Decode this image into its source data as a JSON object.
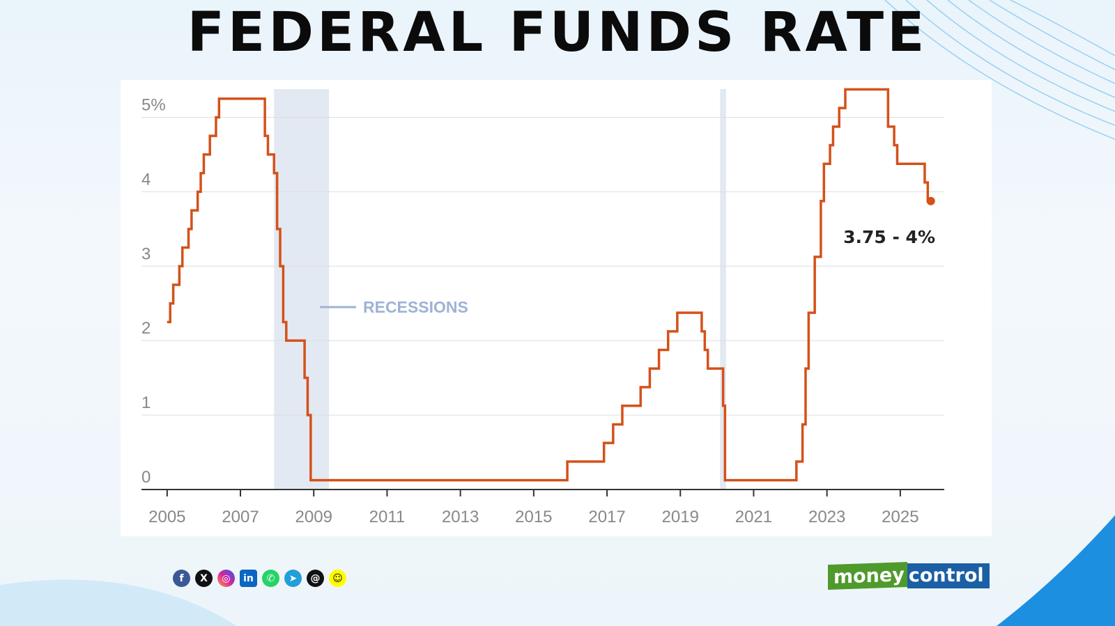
{
  "colors": {
    "line": "#d4511a",
    "recession": "#e3e9f2",
    "legend": "#9db3d6",
    "grid": "#dddddd",
    "axis": "#333333",
    "tick_text": "#888888"
  },
  "social_icons": [
    "facebook-icon",
    "x-icon",
    "instagram-icon",
    "linkedin-icon",
    "whatsapp-icon",
    "telegram-icon",
    "threads-icon",
    "snapchat-icon"
  ],
  "logo": {
    "part1": "money",
    "part2": "control"
  },
  "chart_data": {
    "type": "line",
    "step": true,
    "title": "FEDERAL FUNDS RATE",
    "xlabel": "",
    "ylabel": "",
    "xlim": [
      2004.3,
      2026.2
    ],
    "ylim": [
      0,
      5.5
    ],
    "x_ticks": [
      2005,
      2007,
      2009,
      2011,
      2013,
      2015,
      2017,
      2019,
      2021,
      2023,
      2025
    ],
    "x_tick_labels": [
      "2005",
      "2007",
      "2009",
      "2011",
      "2013",
      "2015",
      "2017",
      "2019",
      "2021",
      "2023",
      "2025"
    ],
    "y_ticks": [
      0,
      1,
      2,
      3,
      4,
      5
    ],
    "y_tick_labels": [
      "0",
      "1",
      "2",
      "3",
      "4",
      "5%"
    ],
    "grid": true,
    "legend": {
      "label": "RECESSIONS",
      "placement": "center-left"
    },
    "recessions": [
      [
        "2007-12",
        "2009-06"
      ],
      [
        "2020-02",
        "2020-04"
      ]
    ],
    "annotation": "3.75 - 4%",
    "points": [
      [
        "2005-01",
        2.25
      ],
      [
        "2005-02",
        2.5
      ],
      [
        "2005-03",
        2.75
      ],
      [
        "2005-05",
        3.0
      ],
      [
        "2005-06",
        3.25
      ],
      [
        "2005-08",
        3.5
      ],
      [
        "2005-09",
        3.75
      ],
      [
        "2005-11",
        4.0
      ],
      [
        "2005-12",
        4.25
      ],
      [
        "2006-01",
        4.5
      ],
      [
        "2006-03",
        4.75
      ],
      [
        "2006-05",
        5.0
      ],
      [
        "2006-06",
        5.25
      ],
      [
        "2007-09",
        4.75
      ],
      [
        "2007-10",
        4.5
      ],
      [
        "2007-12",
        4.25
      ],
      [
        "2008-01",
        3.5
      ],
      [
        "2008-02",
        3.0
      ],
      [
        "2008-03",
        2.25
      ],
      [
        "2008-04",
        2.0
      ],
      [
        "2008-10",
        1.5
      ],
      [
        "2008-11",
        1.0
      ],
      [
        "2008-12",
        0.125
      ],
      [
        "2015-12",
        0.375
      ],
      [
        "2016-12",
        0.625
      ],
      [
        "2017-03",
        0.875
      ],
      [
        "2017-06",
        1.125
      ],
      [
        "2017-12",
        1.375
      ],
      [
        "2018-03",
        1.625
      ],
      [
        "2018-06",
        1.875
      ],
      [
        "2018-09",
        2.125
      ],
      [
        "2018-12",
        2.375
      ],
      [
        "2019-08",
        2.125
      ],
      [
        "2019-09",
        1.875
      ],
      [
        "2019-10",
        1.625
      ],
      [
        "2020-03",
        1.125
      ],
      [
        "2020-03-20",
        0.125
      ],
      [
        "2022-03",
        0.375
      ],
      [
        "2022-05",
        0.875
      ],
      [
        "2022-06",
        1.625
      ],
      [
        "2022-07",
        2.375
      ],
      [
        "2022-09",
        3.125
      ],
      [
        "2022-11",
        3.875
      ],
      [
        "2022-12",
        4.375
      ],
      [
        "2023-02",
        4.625
      ],
      [
        "2023-03",
        4.875
      ],
      [
        "2023-05",
        5.125
      ],
      [
        "2023-07",
        5.375
      ],
      [
        "2024-09",
        4.875
      ],
      [
        "2024-11",
        4.625
      ],
      [
        "2024-12",
        4.375
      ],
      [
        "2025-09",
        4.125
      ],
      [
        "2025-10",
        3.875
      ],
      [
        "2025-11",
        3.875
      ]
    ]
  }
}
